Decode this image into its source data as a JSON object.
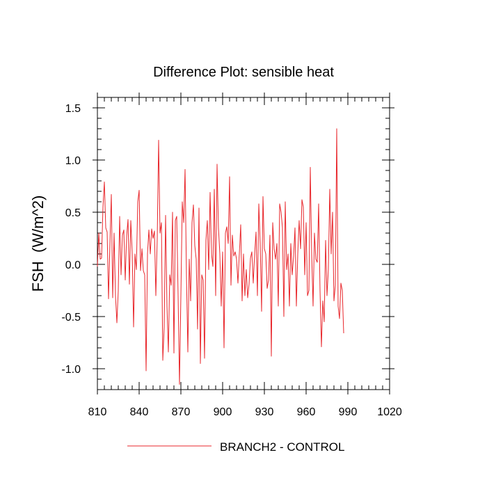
{
  "chart_data": {
    "type": "line",
    "title": "Difference Plot: sensible heat",
    "xlabel": "",
    "ylabel": "FSH  (W/m^2)",
    "xlim": [
      810,
      1020
    ],
    "ylim": [
      -1.2,
      1.6
    ],
    "xticks": [
      810,
      840,
      870,
      900,
      930,
      960,
      990,
      1020
    ],
    "xtick_labels": [
      "810",
      "840",
      "870",
      "900",
      "930",
      "960",
      "990",
      "1020"
    ],
    "yticks": [
      -1.0,
      -0.5,
      0.0,
      0.5,
      1.0,
      1.5
    ],
    "ytick_labels": [
      "-1.0",
      "-0.5",
      "0.0",
      "0.5",
      "1.0",
      "1.5"
    ],
    "grid": false,
    "legend_position": "bottom-center",
    "series": [
      {
        "name": "BRANCH2 - CONTROL",
        "color": "#e8262b",
        "x_start": 810,
        "x_step": 1,
        "values": [
          -0.02,
          0.3,
          0.05,
          0.06,
          0.55,
          0.79,
          0.35,
          0.31,
          -0.33,
          0.2,
          0.67,
          -0.32,
          0.3,
          -0.3,
          -0.56,
          -0.25,
          0.46,
          -0.1,
          0.28,
          0.33,
          -0.15,
          0.27,
          0.43,
          -0.19,
          0.42,
          0.12,
          -0.6,
          0.1,
          -0.05,
          0.6,
          0.71,
          -0.06,
          0.15,
          -0.06,
          -0.1,
          -1.02,
          0.1,
          0.33,
          0.1,
          0.34,
          0.25,
          0.32,
          -0.3,
          0.25,
          1.19,
          0.3,
          0.4,
          -0.92,
          -0.6,
          0.47,
          -0.4,
          -0.84,
          -0.1,
          -0.2,
          0.5,
          -0.85,
          0.42,
          0.46,
          -0.3,
          -1.15,
          -0.3,
          0.6,
          0.4,
          0.91,
          -0.1,
          -0.84,
          0.05,
          -0.35,
          0.4,
          0.57,
          0.18,
          0.05,
          -0.62,
          0.54,
          -0.95,
          -0.1,
          -0.15,
          -0.9,
          0.23,
          0.42,
          -0.05,
          0.69,
          0.1,
          -0.02,
          0.72,
          -0.3,
          0.96,
          0.35,
          0.1,
          -0.4,
          0.12,
          -0.8,
          0.3,
          0.36,
          0.2,
          0.84,
          -0.2,
          0.28,
          0.08,
          0.12,
          0.05,
          -0.18,
          0.1,
          0.38,
          -0.35,
          0.1,
          -0.3,
          -0.05,
          -0.32,
          -0.19,
          0.06,
          0.12,
          -0.18,
          0.1,
          0.31,
          -0.3,
          0.58,
          0.2,
          -0.45,
          0.65,
          0.15,
          0.1,
          -0.23,
          -0.15,
          0.28,
          -0.88,
          0.4,
          0.15,
          0.05,
          0.2,
          -0.4,
          0.58,
          0.5,
          0.35,
          -0.5,
          0.6,
          -0.05,
          0.1,
          -0.4,
          0.2,
          -0.1,
          0.08,
          0.35,
          -0.4,
          0.1,
          0.42,
          0.15,
          0.62,
          0.55,
          -0.1,
          0.4,
          -0.3,
          -0.25,
          0.93,
          0.1,
          -0.4,
          0.3,
          0.05,
          0.02,
          0.58,
          -0.25,
          -0.79,
          -0.35,
          -0.55,
          0.23,
          -0.3,
          -0.05,
          0.72,
          0.1,
          0.5,
          -0.35,
          -0.2,
          1.3,
          -0.4,
          -0.52,
          -0.18,
          -0.25,
          -0.66
        ]
      }
    ]
  }
}
